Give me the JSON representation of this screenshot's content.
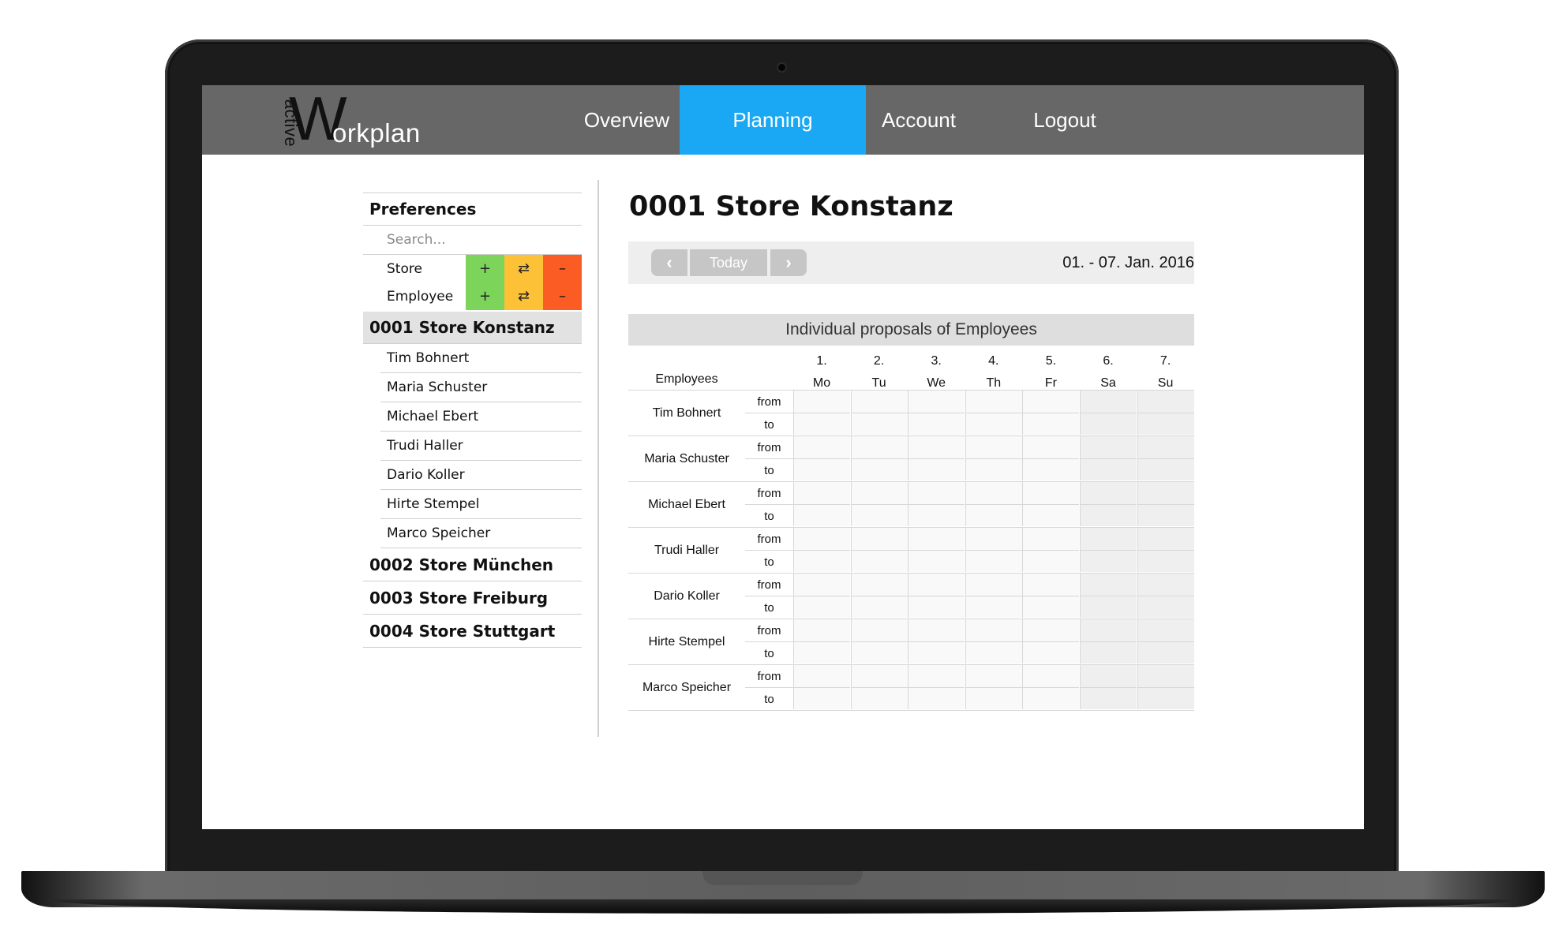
{
  "app": {
    "logo": {
      "small": "active",
      "big": "W",
      "rest": "orkplan"
    },
    "nav": [
      {
        "label": "Overview",
        "active": false
      },
      {
        "label": "Planning",
        "active": true
      },
      {
        "label": "Account",
        "active": false
      },
      {
        "label": "Logout",
        "active": false
      }
    ],
    "accent_color": "#1aa8f4"
  },
  "sidebar": {
    "title": "Preferences",
    "search_placeholder": "Search...",
    "actions": [
      {
        "label": "Store",
        "add": "+",
        "swap": "⇄",
        "remove": "–"
      },
      {
        "label": "Employee",
        "add": "+",
        "swap": "⇄",
        "remove": "–"
      }
    ],
    "active_store": "0001 Store Konstanz",
    "employees": [
      "Tim Bohnert",
      "Maria Schuster",
      "Michael Ebert",
      "Trudi Haller",
      "Dario Koller",
      "Hirte Stempel",
      "Marco Speicher"
    ],
    "stores": [
      "0002 Store München",
      "0003 Store Freiburg",
      "0004 Store Stuttgart"
    ]
  },
  "main": {
    "title": "0001 Store Konstanz",
    "datebar": {
      "today": "Today",
      "range": "01. - 07. Jan. 2016"
    },
    "panel_title": "Individual proposals of Employees",
    "grid": {
      "employees_header": "Employees",
      "days": [
        {
          "num": "1.",
          "abbr": "Mo"
        },
        {
          "num": "2.",
          "abbr": "Tu"
        },
        {
          "num": "3.",
          "abbr": "We"
        },
        {
          "num": "4.",
          "abbr": "Th"
        },
        {
          "num": "5.",
          "abbr": "Fr"
        },
        {
          "num": "6.",
          "abbr": "Sa"
        },
        {
          "num": "7.",
          "abbr": "Su"
        }
      ],
      "from_label": "from",
      "to_label": "to",
      "rows": [
        "Tim Bohnert",
        "Maria Schuster",
        "Michael Ebert",
        "Trudi Haller",
        "Dario Koller",
        "Hirte Stempel",
        "Marco Speicher"
      ]
    }
  }
}
